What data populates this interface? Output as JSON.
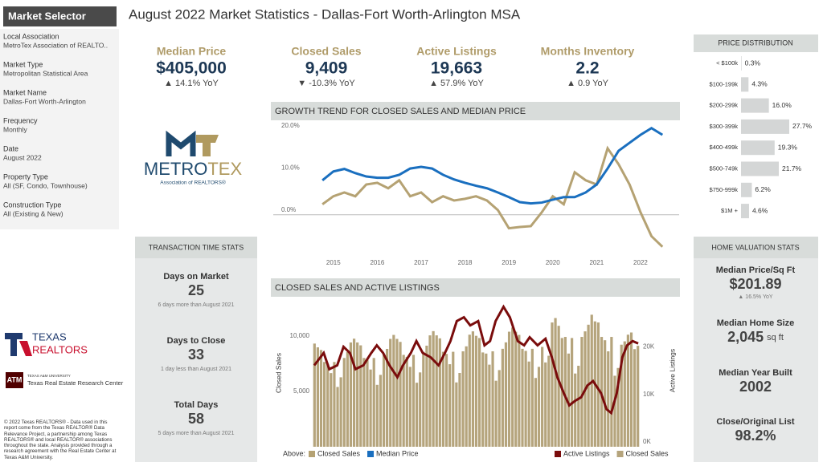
{
  "header": {
    "title": "August 2022 Market Statistics - Dallas-Fort Worth-Arlington MSA"
  },
  "sidebar": {
    "title": "Market Selector",
    "fields": [
      {
        "label": "Local Association",
        "value": "MetroTex Association of REALTO.."
      },
      {
        "label": "Market Type",
        "value": "Metropolitan Statistical Area"
      },
      {
        "label": "Market Name",
        "value": "Dallas-Fort Worth-Arlington"
      },
      {
        "label": "Frequency",
        "value": "Monthly"
      },
      {
        "label": "Date",
        "value": "August 2022"
      },
      {
        "label": "Property Type",
        "value": "All (SF, Condo, Townhouse)"
      },
      {
        "label": "Construction Type",
        "value": "All (Existing & New)"
      }
    ]
  },
  "logos": {
    "metro": "METRO",
    "tex": "TEX",
    "metrotex_sub": "Association of REALTORS®",
    "texas": "TEXAS",
    "realtors": "REALTORS",
    "tamu": "TEXAS A&M UNIVERSITY",
    "trerc": "Texas Real Estate Research Center"
  },
  "footer": "© 2022 Texas REALTORS® - Data used in this report come from the Texas REALTOR® Data Relevance Project, a partnership among Texas REALTORS® and local REALTOR® associations throughout the state. Analysis provided through a research agreement with the Real Estate Center at Texas A&M University.",
  "kpis": [
    {
      "label": "Median Price",
      "value": "$405,000",
      "change": "▲ 14.1% YoY"
    },
    {
      "label": "Closed Sales",
      "value": "9,409",
      "change": "▼ -10.3% YoY"
    },
    {
      "label": "Active Listings",
      "value": "19,663",
      "change": "▲ 57.9% YoY"
    },
    {
      "label": "Months Inventory",
      "value": "2.2",
      "change": "▲ 0.9 YoY"
    }
  ],
  "transaction_stats": {
    "title": "TRANSACTION TIME STATS",
    "items": [
      {
        "label": "Days on Market",
        "value": "25",
        "note": "6 days more than August 2021"
      },
      {
        "label": "Days to Close",
        "value": "33",
        "note": "1 day less than August 2021"
      },
      {
        "label": "Total Days",
        "value": "58",
        "note": "5 days more than August 2021"
      }
    ]
  },
  "home_valuation": {
    "title": "HOME VALUATION STATS",
    "items": [
      {
        "label": "Median Price/Sq Ft",
        "value": "$201.89",
        "note": "▲ 16.5% YoY"
      },
      {
        "label": "Median Home Size",
        "value": "2,045",
        "unit": "sq ft"
      },
      {
        "label": "Median Year Built",
        "value": "2002"
      },
      {
        "label": "Close/Original List",
        "value": "98.2%"
      }
    ]
  },
  "chart_data": [
    {
      "type": "hbar",
      "title": "PRICE DISTRIBUTION",
      "color": "#d4d6d6",
      "categories": [
        "< $100k",
        "$100-199k",
        "$200-299k",
        "$300-399k",
        "$400-499k",
        "$500-749k",
        "$750-999k",
        "$1M +"
      ],
      "values": [
        0.3,
        4.3,
        16.0,
        27.7,
        19.3,
        21.7,
        6.2,
        4.6
      ],
      "value_labels": [
        "0.3%",
        "4.3%",
        "16.0%",
        "27.7%",
        "19.3%",
        "21.7%",
        "6.2%",
        "4.6%"
      ]
    },
    {
      "type": "line",
      "title": "GROWTH TREND FOR CLOSED SALES AND MEDIAN PRICE",
      "legend_title": "Above:",
      "x": [
        2014.75,
        2015,
        2015.25,
        2015.5,
        2015.75,
        2016,
        2016.25,
        2016.5,
        2016.75,
        2017,
        2017.25,
        2017.5,
        2017.75,
        2018,
        2018.25,
        2018.5,
        2018.75,
        2019,
        2019.25,
        2019.5,
        2019.75,
        2020,
        2020.25,
        2020.5,
        2020.75,
        2021,
        2021.25,
        2021.5,
        2021.75,
        2022,
        2022.25,
        2022.5
      ],
      "xlim": [
        2013.63,
        2022.88
      ],
      "xticks": [
        2015,
        2016,
        2017,
        2018,
        2019,
        2020,
        2021,
        2022
      ],
      "ylim": [
        -9,
        21.5
      ],
      "yticks": [
        {
          "value": 0,
          "label": "0.0%"
        },
        {
          "value": 10,
          "label": "10.0%"
        },
        {
          "value": 20,
          "label": "20.0%"
        }
      ],
      "series": [
        {
          "name": "Closed Sales",
          "color": "#b5a273",
          "values": [
            2.5,
            4.4,
            5.3,
            4.4,
            7.2,
            7.6,
            6.3,
            8.2,
            4.4,
            5.3,
            3.0,
            4.4,
            3.4,
            3.8,
            4.4,
            3.4,
            1.1,
            -3.2,
            -2.9,
            -2.7,
            0.6,
            4.4,
            2.5,
            10.1,
            8.2,
            7.2,
            15.8,
            12.0,
            7.2,
            0.6,
            -5.1,
            -7.6
          ]
        },
        {
          "name": "Median Price",
          "color": "#1a6fbf",
          "values": [
            8.2,
            10.3,
            10.9,
            9.9,
            9.1,
            8.8,
            8.8,
            9.5,
            11.0,
            11.4,
            11.0,
            9.5,
            8.4,
            7.6,
            6.9,
            6.3,
            5.3,
            4.2,
            3.0,
            2.7,
            2.9,
            3.6,
            4.2,
            4.2,
            5.3,
            7.2,
            11.0,
            15.2,
            17.1,
            19.0,
            20.6,
            19.0
          ]
        }
      ]
    },
    {
      "type": "combo",
      "title": "CLOSED SALES AND ACTIVE LISTINGS",
      "xlim": [
        2014.35,
        2022.65
      ],
      "ylabel": "Closed Sales",
      "y2label": "Active Listings",
      "ylim": [
        0,
        13300
      ],
      "yticks": [
        {
          "value": 5000,
          "label": "5,000"
        },
        {
          "value": 10000,
          "label": "10,000"
        }
      ],
      "y2lim": [
        -1000,
        30000
      ],
      "y2ticks": [
        {
          "value": 0,
          "label": "0K"
        },
        {
          "value": 10000,
          "label": "10K"
        },
        {
          "value": 20000,
          "label": "20K"
        }
      ],
      "series": [
        {
          "name": "Active Listings",
          "color": "#7a0c0c",
          "axis": "y2",
          "x": [
            2014.41,
            2014.65,
            2014.79,
            2014.99,
            2015.15,
            2015.31,
            2015.45,
            2015.65,
            2015.85,
            2015.99,
            2016.15,
            2016.31,
            2016.51,
            2016.65,
            2016.85,
            2016.99,
            2017.15,
            2017.35,
            2017.55,
            2017.71,
            2017.85,
            2018.01,
            2018.19,
            2018.35,
            2018.55,
            2018.71,
            2018.85,
            2018.99,
            2019.19,
            2019.35,
            2019.55,
            2019.71,
            2019.85,
            2020.05,
            2020.25,
            2020.41,
            2020.55,
            2020.71,
            2020.85,
            2020.99,
            2021.15,
            2021.31,
            2021.45,
            2021.65,
            2021.79,
            2021.91,
            2022.05,
            2022.19,
            2022.31,
            2022.45,
            2022.59
          ],
          "values": [
            16100,
            18700,
            15300,
            16100,
            20000,
            18700,
            15300,
            16100,
            18700,
            20300,
            18700,
            16100,
            13600,
            16100,
            18700,
            21200,
            18700,
            17800,
            16100,
            18700,
            21200,
            25400,
            26200,
            24500,
            25400,
            20300,
            21200,
            25400,
            28400,
            26200,
            21200,
            20300,
            22000,
            20300,
            21700,
            17800,
            13600,
            10300,
            7700,
            8600,
            9400,
            11900,
            12800,
            10300,
            6900,
            6100,
            10300,
            17800,
            20300,
            21200,
            20700
          ]
        },
        {
          "name": "Closed Sales",
          "color": "#b5a47c",
          "x": [
            2014.417,
            2014.5,
            2014.583,
            2014.667,
            2014.75,
            2014.833,
            2014.917,
            2015,
            2015.083,
            2015.167,
            2015.25,
            2015.333,
            2015.417,
            2015.5,
            2015.583,
            2015.667,
            2015.75,
            2015.833,
            2015.917,
            2016,
            2016.083,
            2016.167,
            2016.25,
            2016.333,
            2016.417,
            2016.5,
            2016.583,
            2016.667,
            2016.75,
            2016.833,
            2016.917,
            2017,
            2017.083,
            2017.167,
            2017.25,
            2017.333,
            2017.417,
            2017.5,
            2017.583,
            2017.667,
            2017.75,
            2017.833,
            2017.917,
            2018,
            2018.083,
            2018.167,
            2018.25,
            2018.333,
            2018.417,
            2018.5,
            2018.583,
            2018.667,
            2018.75,
            2018.833,
            2018.917,
            2019,
            2019.083,
            2019.167,
            2019.25,
            2019.333,
            2019.417,
            2019.5,
            2019.583,
            2019.667,
            2019.75,
            2019.833,
            2019.917,
            2020,
            2020.083,
            2020.167,
            2020.25,
            2020.333,
            2020.417,
            2020.5,
            2020.583,
            2020.667,
            2020.75,
            2020.833,
            2020.917,
            2021,
            2021.083,
            2021.167,
            2021.25,
            2021.333,
            2021.417,
            2021.5,
            2021.583,
            2021.667,
            2021.75,
            2021.833,
            2021.917,
            2022,
            2022.083,
            2022.167,
            2022.25,
            2022.333,
            2022.417,
            2022.5,
            2022.583
          ],
          "values": [
            9300,
            8960,
            8720,
            7640,
            7470,
            6640,
            7640,
            5390,
            6260,
            8000,
            8530,
            9400,
            9740,
            9400,
            9140,
            8000,
            7830,
            6960,
            8000,
            5580,
            6480,
            8280,
            8820,
            9720,
            10080,
            9720,
            9450,
            8280,
            8100,
            7200,
            8280,
            5770,
            6700,
            8560,
            9110,
            10040,
            10420,
            10040,
            9770,
            8560,
            8370,
            7440,
            8560,
            5800,
            6650,
            8600,
            9050,
            10100,
            10400,
            10000,
            9800,
            8500,
            8400,
            7400,
            8600,
            5950,
            6910,
            8830,
            9410,
            10370,
            10750,
            10370,
            10080,
            8830,
            8640,
            7680,
            8830,
            6200,
            7200,
            9000,
            7600,
            8200,
            11200,
            11600,
            10900,
            9800,
            9900,
            8400,
            9800,
            6600,
            7300,
            9900,
            10400,
            11000,
            11900,
            11300,
            11200,
            9900,
            9600,
            8600,
            9900,
            6400,
            7100,
            9200,
            9500,
            10100,
            10300,
            8800,
            9100
          ]
        }
      ]
    }
  ]
}
